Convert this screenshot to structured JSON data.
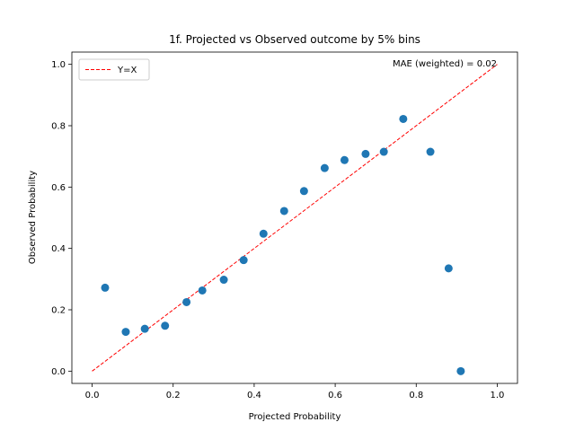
{
  "chart_data": {
    "type": "scatter",
    "title": "1f. Projected vs Observed outcome by 5% bins",
    "xlabel": "Projected Probability",
    "ylabel": "Observed Probability",
    "xlim": [
      -0.05,
      1.05
    ],
    "ylim": [
      -0.04,
      1.04
    ],
    "xticks": [
      0.0,
      0.2,
      0.4,
      0.6,
      0.8,
      1.0
    ],
    "yticks": [
      0.0,
      0.2,
      0.4,
      0.6,
      0.8,
      1.0
    ],
    "xtick_labels": [
      "0.0",
      "0.2",
      "0.4",
      "0.6",
      "0.8",
      "1.0"
    ],
    "ytick_labels": [
      "0.0",
      "0.2",
      "0.4",
      "0.6",
      "0.8",
      "1.0"
    ],
    "grid": false,
    "legend_position": "top-left",
    "annotation": "MAE (weighted) = 0.02",
    "reference_line": {
      "name": "Y=X",
      "x": [
        0,
        1
      ],
      "y": [
        0,
        1
      ],
      "color": "#ff0000",
      "style": "dashed"
    },
    "series": [
      {
        "marker_color": "#1f77b4",
        "x": [
          0.032,
          0.083,
          0.13,
          0.18,
          0.233,
          0.272,
          0.325,
          0.374,
          0.423,
          0.474,
          0.523,
          0.574,
          0.623,
          0.675,
          0.72,
          0.768,
          0.835,
          0.88,
          0.91
        ],
        "y": [
          0.272,
          0.128,
          0.138,
          0.148,
          0.225,
          0.263,
          0.298,
          0.362,
          0.448,
          0.522,
          0.587,
          0.662,
          0.688,
          0.708,
          0.715,
          0.822,
          0.715,
          0.335,
          0.0
        ]
      }
    ]
  }
}
